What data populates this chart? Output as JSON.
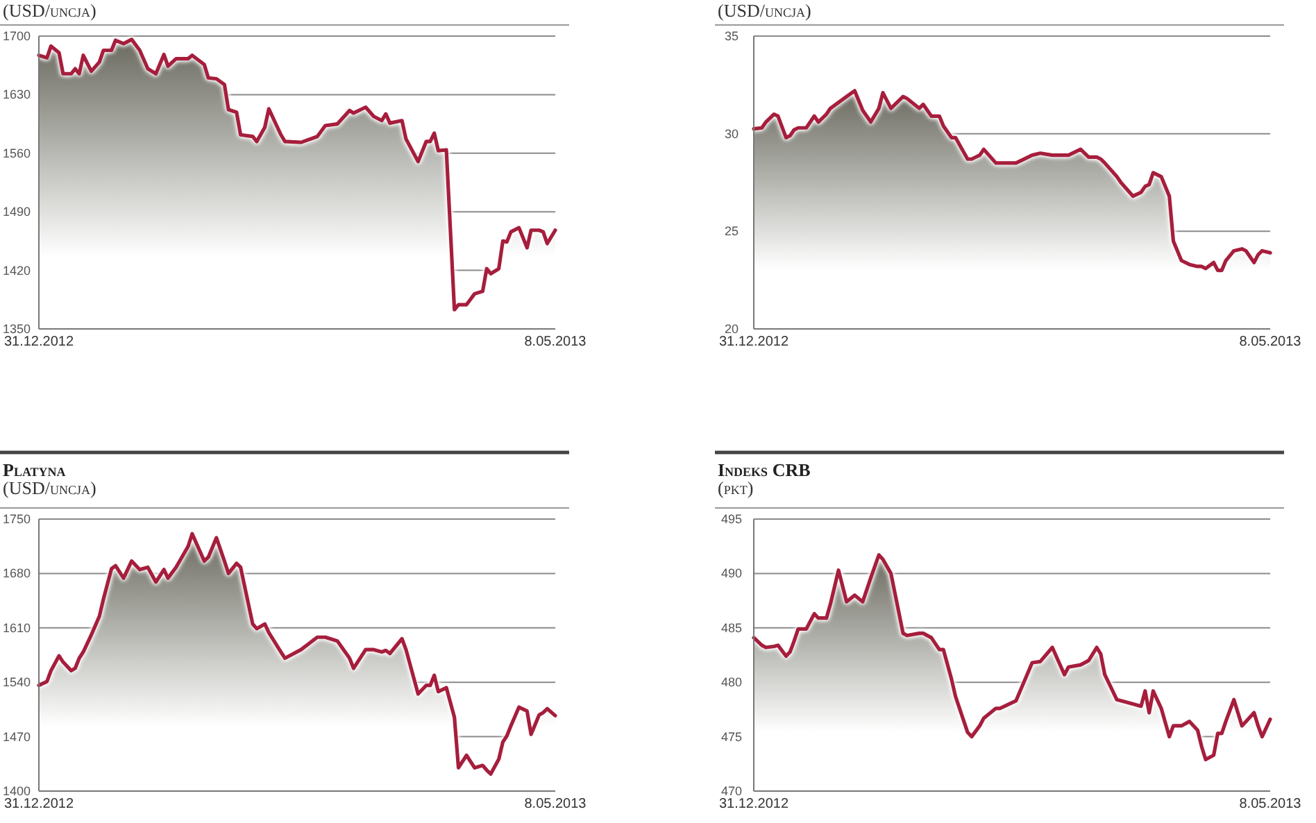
{
  "chart_data": [
    {
      "type": "area",
      "subtitle": "(USD/uncja)",
      "color": "#a61e3c",
      "grid": "y",
      "ylim": [
        1350,
        1700
      ],
      "yticks": [
        1350,
        1420,
        1490,
        1560,
        1630,
        1700
      ],
      "xlim": [
        "2012-12-31",
        "2013-05-08"
      ],
      "xticks": [
        {
          "value": "2012-12-31",
          "label": "31.12.2012"
        },
        {
          "value": "2013-05-08",
          "label": "8.05.2013"
        }
      ],
      "x": [
        "2012-12-31",
        "2013-01-02",
        "2013-01-03",
        "2013-01-05",
        "2013-01-06",
        "2013-01-08",
        "2013-01-09",
        "2013-01-10",
        "2013-01-11",
        "2013-01-13",
        "2013-01-15",
        "2013-01-16",
        "2013-01-18",
        "2013-01-19",
        "2013-01-21",
        "2013-01-23",
        "2013-01-25",
        "2013-01-27",
        "2013-01-29",
        "2013-01-31",
        "2013-02-01",
        "2013-02-03",
        "2013-02-06",
        "2013-02-07",
        "2013-02-10",
        "2013-02-11",
        "2013-02-13",
        "2013-02-15",
        "2013-02-16",
        "2013-02-18",
        "2013-02-19",
        "2013-02-22",
        "2013-02-23",
        "2013-02-25",
        "2013-02-26",
        "2013-03-01",
        "2013-03-02",
        "2013-03-06",
        "2013-03-10",
        "2013-03-12",
        "2013-03-15",
        "2013-03-18",
        "2013-03-19",
        "2013-03-22",
        "2013-03-24",
        "2013-03-26",
        "2013-03-27",
        "2013-03-28",
        "2013-03-31",
        "2013-04-01",
        "2013-04-04",
        "2013-04-06",
        "2013-04-07",
        "2013-04-08",
        "2013-04-09",
        "2013-04-11",
        "2013-04-13",
        "2013-04-14",
        "2013-04-16",
        "2013-04-18",
        "2013-04-20",
        "2013-04-21",
        "2013-04-22",
        "2013-04-24",
        "2013-04-25",
        "2013-04-26",
        "2013-04-27",
        "2013-04-29",
        "2013-05-01",
        "2013-05-02",
        "2013-05-04",
        "2013-05-05",
        "2013-05-06",
        "2013-05-08"
      ],
      "values": [
        1677,
        1674,
        1688,
        1680,
        1655,
        1655,
        1661,
        1655,
        1677,
        1658,
        1669,
        1683,
        1683,
        1695,
        1691,
        1696,
        1683,
        1661,
        1655,
        1678,
        1664,
        1673,
        1673,
        1677,
        1666,
        1650,
        1649,
        1642,
        1612,
        1609,
        1582,
        1580,
        1574,
        1591,
        1613,
        1582,
        1574,
        1573,
        1580,
        1593,
        1595,
        1611,
        1608,
        1615,
        1604,
        1599,
        1607,
        1596,
        1599,
        1577,
        1550,
        1574,
        1574,
        1584,
        1563,
        1564,
        1373,
        1379,
        1379,
        1392,
        1395,
        1422,
        1416,
        1422,
        1455,
        1454,
        1466,
        1471,
        1447,
        1468,
        1468,
        1466,
        1452,
        1468
      ]
    },
    {
      "type": "area",
      "subtitle": "(USD/uncja)",
      "color": "#a61e3c",
      "grid": "y",
      "ylim": [
        20,
        35
      ],
      "yticks": [
        20,
        25,
        30,
        35
      ],
      "xlim": [
        "2012-12-31",
        "2013-05-08"
      ],
      "xticks": [
        {
          "value": "2012-12-31",
          "label": "31.12.2012"
        },
        {
          "value": "2013-05-08",
          "label": "8.05.2013"
        }
      ],
      "x": [
        "2012-12-31",
        "2013-01-02",
        "2013-01-03",
        "2013-01-05",
        "2013-01-06",
        "2013-01-08",
        "2013-01-09",
        "2013-01-10",
        "2013-01-11",
        "2013-01-13",
        "2013-01-15",
        "2013-01-16",
        "2013-01-18",
        "2013-01-19",
        "2013-01-21",
        "2013-01-23",
        "2013-01-25",
        "2013-01-27",
        "2013-01-29",
        "2013-01-31",
        "2013-02-01",
        "2013-02-03",
        "2013-02-06",
        "2013-02-07",
        "2013-02-10",
        "2013-02-11",
        "2013-02-13",
        "2013-02-15",
        "2013-02-16",
        "2013-02-18",
        "2013-02-19",
        "2013-02-22",
        "2013-02-23",
        "2013-02-25",
        "2013-02-26",
        "2013-03-01",
        "2013-03-02",
        "2013-03-06",
        "2013-03-10",
        "2013-03-12",
        "2013-03-15",
        "2013-03-18",
        "2013-03-19",
        "2013-03-22",
        "2013-03-24",
        "2013-03-26",
        "2013-03-27",
        "2013-03-28",
        "2013-03-31",
        "2013-04-01",
        "2013-04-04",
        "2013-04-06",
        "2013-04-07",
        "2013-04-08",
        "2013-04-09",
        "2013-04-11",
        "2013-04-13",
        "2013-04-14",
        "2013-04-16",
        "2013-04-18",
        "2013-04-20",
        "2013-04-21",
        "2013-04-22",
        "2013-04-24",
        "2013-04-25",
        "2013-04-26",
        "2013-04-27",
        "2013-04-29",
        "2013-05-01",
        "2013-05-02",
        "2013-05-04",
        "2013-05-05",
        "2013-05-06",
        "2013-05-08"
      ],
      "values": [
        30.25,
        30.3,
        30.6,
        31.0,
        30.9,
        29.8,
        29.9,
        30.2,
        30.3,
        30.3,
        30.9,
        30.6,
        31.0,
        31.3,
        31.6,
        31.9,
        32.2,
        31.2,
        30.6,
        31.3,
        32.1,
        31.3,
        31.9,
        31.8,
        31.3,
        31.5,
        30.9,
        30.9,
        30.4,
        29.8,
        29.8,
        28.7,
        28.7,
        28.9,
        29.2,
        28.5,
        28.5,
        28.5,
        28.9,
        29.0,
        28.9,
        28.9,
        28.9,
        29.2,
        28.8,
        28.8,
        28.7,
        28.5,
        27.8,
        27.5,
        26.8,
        27.0,
        27.3,
        27.4,
        28.0,
        27.8,
        26.8,
        24.5,
        23.5,
        23.3,
        23.2,
        23.2,
        23.1,
        23.4,
        23.0,
        23.0,
        23.5,
        24.0,
        24.1,
        24.0,
        23.4,
        23.8,
        24.0,
        23.9
      ]
    },
    {
      "type": "area",
      "title": "Platyna",
      "subtitle": "(USD/uncja)",
      "color": "#a61e3c",
      "grid": "y",
      "ylim": [
        1400,
        1750
      ],
      "yticks": [
        1400,
        1470,
        1540,
        1610,
        1680,
        1750
      ],
      "xlim": [
        "2012-12-31",
        "2013-05-08"
      ],
      "xticks": [
        {
          "value": "2012-12-31",
          "label": "31.12.2012"
        },
        {
          "value": "2013-05-08",
          "label": "8.05.2013"
        }
      ],
      "x": [
        "2012-12-31",
        "2013-01-02",
        "2013-01-03",
        "2013-01-05",
        "2013-01-06",
        "2013-01-08",
        "2013-01-09",
        "2013-01-10",
        "2013-01-11",
        "2013-01-13",
        "2013-01-15",
        "2013-01-16",
        "2013-01-18",
        "2013-01-19",
        "2013-01-21",
        "2013-01-23",
        "2013-01-25",
        "2013-01-27",
        "2013-01-29",
        "2013-01-31",
        "2013-02-01",
        "2013-02-03",
        "2013-02-06",
        "2013-02-07",
        "2013-02-10",
        "2013-02-11",
        "2013-02-13",
        "2013-02-15",
        "2013-02-16",
        "2013-02-18",
        "2013-02-19",
        "2013-02-22",
        "2013-02-23",
        "2013-02-25",
        "2013-02-26",
        "2013-03-01",
        "2013-03-02",
        "2013-03-06",
        "2013-03-10",
        "2013-03-12",
        "2013-03-15",
        "2013-03-18",
        "2013-03-19",
        "2013-03-22",
        "2013-03-24",
        "2013-03-26",
        "2013-03-27",
        "2013-03-28",
        "2013-03-31",
        "2013-04-01",
        "2013-04-04",
        "2013-04-06",
        "2013-04-07",
        "2013-04-08",
        "2013-04-09",
        "2013-04-11",
        "2013-04-13",
        "2013-04-14",
        "2013-04-16",
        "2013-04-18",
        "2013-04-20",
        "2013-04-21",
        "2013-04-22",
        "2013-04-24",
        "2013-04-25",
        "2013-04-26",
        "2013-04-27",
        "2013-04-29",
        "2013-05-01",
        "2013-05-02",
        "2013-05-04",
        "2013-05-05",
        "2013-05-06",
        "2013-05-08"
      ],
      "values": [
        1536,
        1541,
        1555,
        1574,
        1566,
        1555,
        1558,
        1571,
        1579,
        1601,
        1625,
        1647,
        1686,
        1690,
        1674,
        1696,
        1685,
        1688,
        1669,
        1685,
        1674,
        1688,
        1715,
        1731,
        1696,
        1701,
        1726,
        1696,
        1680,
        1693,
        1688,
        1615,
        1609,
        1615,
        1604,
        1579,
        1571,
        1582,
        1598,
        1598,
        1593,
        1571,
        1558,
        1582,
        1582,
        1579,
        1581,
        1577,
        1596,
        1582,
        1525,
        1536,
        1536,
        1549,
        1528,
        1533,
        1495,
        1430,
        1446,
        1430,
        1433,
        1427,
        1422,
        1441,
        1463,
        1471,
        1484,
        1508,
        1503,
        1473,
        1498,
        1501,
        1506,
        1497
      ]
    },
    {
      "type": "area",
      "title": "Indeks CRB",
      "subtitle": "(pkt)",
      "color": "#a61e3c",
      "grid": "y",
      "ylim": [
        470,
        495
      ],
      "yticks": [
        470,
        475,
        480,
        485,
        490,
        495
      ],
      "xlim": [
        "2012-12-31",
        "2013-05-08"
      ],
      "xticks": [
        {
          "value": "2012-12-31",
          "label": "31.12.2012"
        },
        {
          "value": "2013-05-08",
          "label": "8.05.2013"
        }
      ],
      "x": [
        "2012-12-31",
        "2013-01-02",
        "2013-01-03",
        "2013-01-05",
        "2013-01-06",
        "2013-01-08",
        "2013-01-09",
        "2013-01-10",
        "2013-01-11",
        "2013-01-13",
        "2013-01-15",
        "2013-01-16",
        "2013-01-18",
        "2013-01-19",
        "2013-01-21",
        "2013-01-23",
        "2013-01-25",
        "2013-01-27",
        "2013-01-29",
        "2013-01-31",
        "2013-02-01",
        "2013-02-03",
        "2013-02-06",
        "2013-02-07",
        "2013-02-10",
        "2013-02-11",
        "2013-02-13",
        "2013-02-15",
        "2013-02-16",
        "2013-02-18",
        "2013-02-19",
        "2013-02-22",
        "2013-02-23",
        "2013-02-25",
        "2013-02-26",
        "2013-03-01",
        "2013-03-02",
        "2013-03-06",
        "2013-03-10",
        "2013-03-12",
        "2013-03-15",
        "2013-03-18",
        "2013-03-19",
        "2013-03-22",
        "2013-03-24",
        "2013-03-26",
        "2013-03-27",
        "2013-03-28",
        "2013-03-31",
        "2013-04-01",
        "2013-04-04",
        "2013-04-06",
        "2013-04-07",
        "2013-04-08",
        "2013-04-09",
        "2013-04-11",
        "2013-04-13",
        "2013-04-14",
        "2013-04-16",
        "2013-04-18",
        "2013-04-20",
        "2013-04-21",
        "2013-04-22",
        "2013-04-24",
        "2013-04-25",
        "2013-04-26",
        "2013-04-27",
        "2013-04-29",
        "2013-05-01",
        "2013-05-02",
        "2013-05-04",
        "2013-05-05",
        "2013-05-06",
        "2013-05-08"
      ],
      "values": [
        484.1,
        483.4,
        483.2,
        483.3,
        483.4,
        482.4,
        482.8,
        483.8,
        484.9,
        484.9,
        486.3,
        485.9,
        485.9,
        487.2,
        490.3,
        487.4,
        488.0,
        487.4,
        489.6,
        491.7,
        491.3,
        490.0,
        484.5,
        484.3,
        484.5,
        484.5,
        484.1,
        483.0,
        483.0,
        480.3,
        478.7,
        475.4,
        475.0,
        476.0,
        476.7,
        477.6,
        477.6,
        478.3,
        481.8,
        481.9,
        483.2,
        480.7,
        481.4,
        481.6,
        482.0,
        483.2,
        482.6,
        480.7,
        478.4,
        478.3,
        478.0,
        477.8,
        479.2,
        477.2,
        479.2,
        477.6,
        475.0,
        476.0,
        476.0,
        476.4,
        475.6,
        474.1,
        472.9,
        473.3,
        475.3,
        475.3,
        476.4,
        478.4,
        476.0,
        476.4,
        477.2,
        476.0,
        475.0,
        476.6
      ]
    }
  ]
}
